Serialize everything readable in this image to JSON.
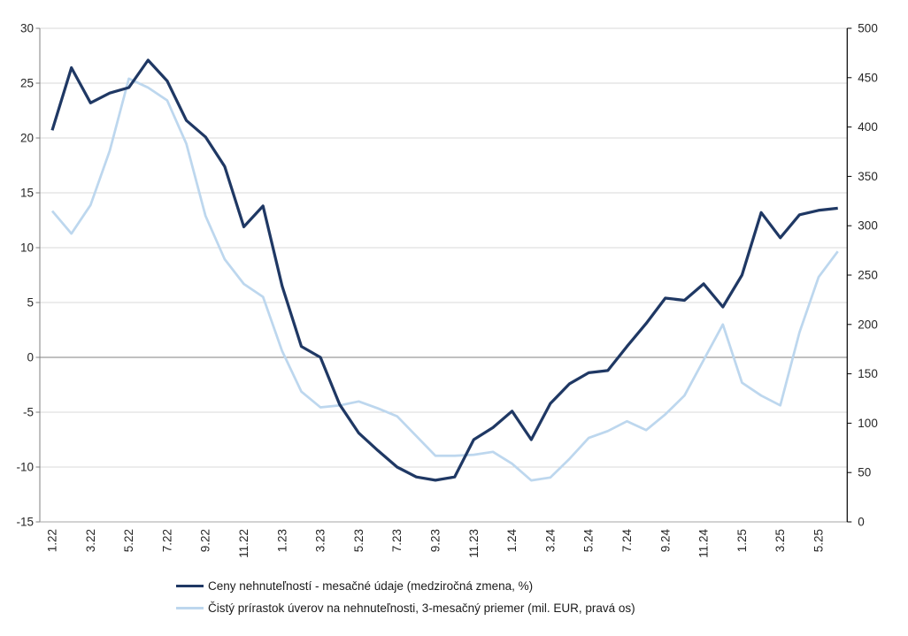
{
  "chart_data": {
    "type": "line",
    "title": "",
    "categories": [
      "1.22",
      "2.22",
      "3.22",
      "4.22",
      "5.22",
      "6.22",
      "7.22",
      "8.22",
      "9.22",
      "10.22",
      "11.22",
      "12.22",
      "1.23",
      "2.23",
      "3.23",
      "4.23",
      "5.23",
      "6.23",
      "7.23",
      "8.23",
      "9.23",
      "10.23",
      "11.23",
      "12.23",
      "1.24",
      "2.24",
      "3.24",
      "4.24",
      "5.24",
      "6.24",
      "7.24",
      "8.24",
      "9.24",
      "10.24",
      "11.24",
      "12.24",
      "1.25",
      "2.25",
      "3.25",
      "4.25",
      "5.25",
      "6.25"
    ],
    "x_tick_every": 2,
    "x_tick_labels": [
      "1.22",
      "3.22",
      "5.22",
      "7.22",
      "9.22",
      "11.22",
      "1.23",
      "3.23",
      "5.23",
      "7.23",
      "9.23",
      "11.23",
      "1.24",
      "3.24",
      "5.24",
      "7.24",
      "9.24",
      "11.24",
      "1.25",
      "3.25",
      "5.25"
    ],
    "left_axis": {
      "min": -15,
      "max": 30,
      "step": 5,
      "ticks": [
        30,
        25,
        20,
        15,
        10,
        5,
        0,
        -5,
        -10,
        -15
      ]
    },
    "right_axis": {
      "min": 0,
      "max": 500,
      "step": 50,
      "ticks": [
        500,
        450,
        400,
        350,
        300,
        250,
        200,
        150,
        100,
        50,
        0
      ]
    },
    "grid": true,
    "legend_position": "bottom",
    "series": [
      {
        "name": "Ceny nehnuteľností - mesačné údaje (medziročná zmena, %)",
        "axis": "left",
        "color": "#1F3864",
        "stroke_width": 3.25,
        "values": [
          20.7,
          26.4,
          23.2,
          24.1,
          24.6,
          27.1,
          25.2,
          21.6,
          20.1,
          17.4,
          11.9,
          13.8,
          6.5,
          1.0,
          0.0,
          -4.3,
          -6.9,
          -8.5,
          -10.0,
          -10.9,
          -11.2,
          -10.9,
          -7.5,
          -6.4,
          -4.9,
          -7.5,
          -4.2,
          -2.4,
          -1.4,
          -1.2,
          1.0,
          3.1,
          5.4,
          5.2,
          6.7,
          4.6,
          7.5,
          13.2,
          10.9,
          13.0,
          13.4,
          13.6
        ]
      },
      {
        "name": "Čistý prírastok úverov na nehnuteľnosti, 3-mesačný priemer (mil. EUR, pravá os)",
        "axis": "right",
        "color": "#BDD7EE",
        "stroke_width": 2.75,
        "values": [
          315,
          292,
          321,
          376,
          449,
          440,
          427,
          383,
          310,
          266,
          241,
          228,
          173,
          132,
          116,
          118,
          122,
          115,
          107,
          87,
          67,
          67,
          68,
          71,
          59,
          42,
          45,
          64,
          85,
          92,
          102,
          93,
          109,
          128,
          164,
          200,
          141,
          128,
          118,
          192,
          248,
          274
        ]
      }
    ],
    "colors": {
      "gridline": "#D9D9D9",
      "zero_line": "#808080",
      "axis_left": "#808080",
      "axis_right": "#000000",
      "axis_bottom": "#A6A6A6",
      "text": "#262626"
    }
  }
}
